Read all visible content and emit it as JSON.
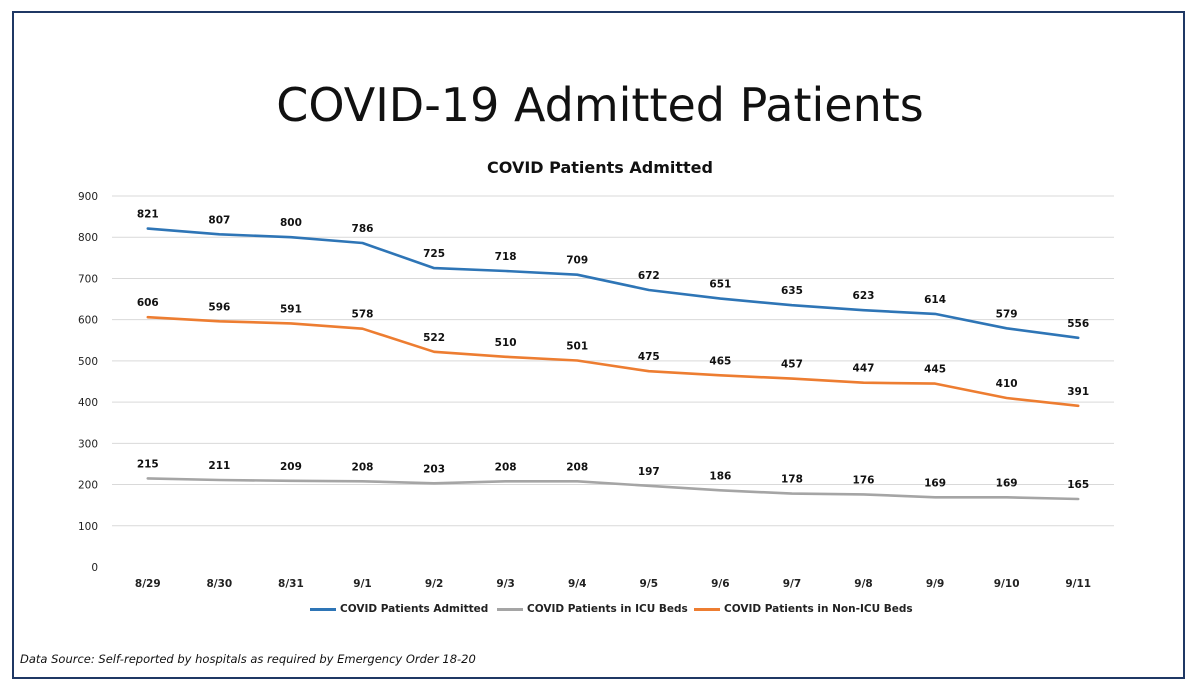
{
  "slide": {
    "title": "COVID-19 Admitted Patients",
    "data_source": "Data Source: Self-reported by hospitals as required by Emergency Order 18-20"
  },
  "chart_data": {
    "type": "line",
    "title": "COVID Patients Admitted",
    "xlabel": "",
    "ylabel": "",
    "ylim": [
      0,
      900
    ],
    "yticks": [
      0,
      100,
      200,
      300,
      400,
      500,
      600,
      700,
      800,
      900
    ],
    "grid": true,
    "legend_position": "bottom",
    "categories": [
      "8/29",
      "8/30",
      "8/31",
      "9/1",
      "9/2",
      "9/3",
      "9/4",
      "9/5",
      "9/6",
      "9/7",
      "9/8",
      "9/9",
      "9/10",
      "9/11"
    ],
    "series": [
      {
        "name": "COVID Patients Admitted",
        "color": "#2e75b6",
        "values": [
          821,
          807,
          800,
          786,
          725,
          718,
          709,
          672,
          651,
          635,
          623,
          614,
          579,
          556
        ]
      },
      {
        "name": "COVID Patients in ICU Beds",
        "color": "#a5a5a5",
        "values": [
          215,
          211,
          209,
          208,
          203,
          208,
          208,
          197,
          186,
          178,
          176,
          169,
          169,
          165
        ]
      },
      {
        "name": "COVID Patients in Non-ICU Beds",
        "color": "#ed7d31",
        "values": [
          606,
          596,
          591,
          578,
          522,
          510,
          501,
          475,
          465,
          457,
          447,
          445,
          410,
          391
        ]
      }
    ]
  }
}
